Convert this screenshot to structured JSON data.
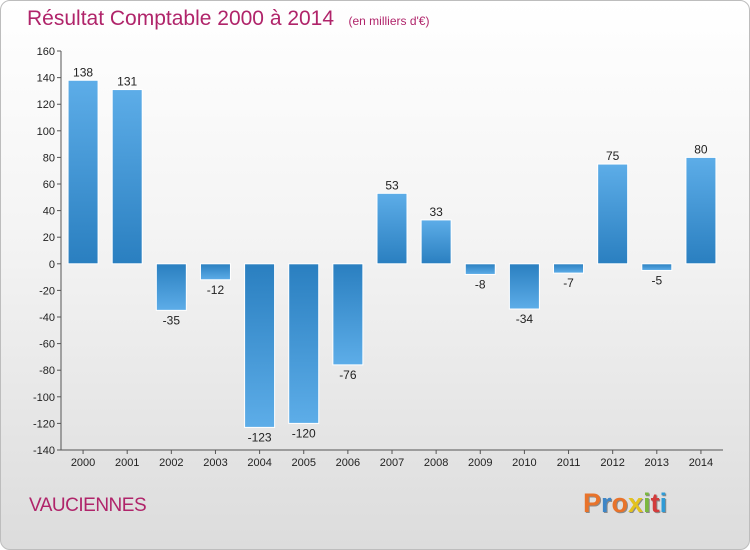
{
  "chart_data": {
    "type": "bar",
    "title": "Résultat Comptable 2000 à 2014",
    "unit": "(en milliers d'€)",
    "categories": [
      "2000",
      "2001",
      "2002",
      "2003",
      "2004",
      "2005",
      "2006",
      "2007",
      "2008",
      "2009",
      "2010",
      "2011",
      "2012",
      "2013",
      "2014"
    ],
    "values": [
      138,
      131,
      -35,
      -12,
      -123,
      -120,
      -76,
      53,
      33,
      -8,
      -34,
      -7,
      75,
      -5,
      80
    ],
    "ylim": [
      -140,
      160
    ],
    "ytick_step": 20,
    "grid": false,
    "legend": "none",
    "colors": {
      "bar_light": "#5dade8",
      "bar_dark": "#2a7fc0",
      "title": "#b0246a"
    }
  },
  "footer": {
    "commune": "VAUCIENNES",
    "brand": "Proxiti",
    "brand_colors": [
      "#e8732b",
      "#3e86c7",
      "#e8732b",
      "#e3c21e",
      "#7bb83f",
      "#d33c3c",
      "#2f9bd6"
    ]
  }
}
